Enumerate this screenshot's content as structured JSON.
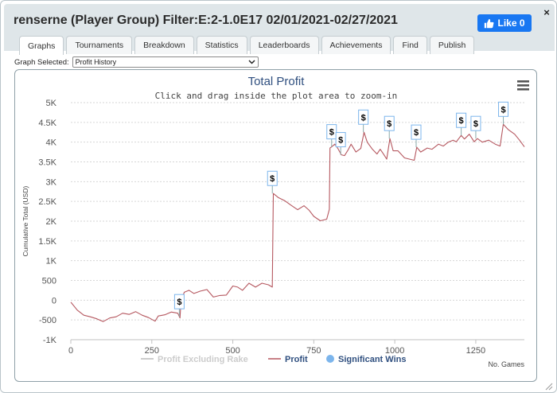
{
  "window": {
    "title": "renserne (Player Group) Filter:E:2-1.0E17 02/01/2021-02/27/2021",
    "like_label": "Like 0",
    "close_label": "×"
  },
  "tabs": [
    {
      "label": "Graphs",
      "active": true
    },
    {
      "label": "Tournaments",
      "active": false
    },
    {
      "label": "Breakdown",
      "active": false
    },
    {
      "label": "Statistics",
      "active": false
    },
    {
      "label": "Leaderboards",
      "active": false
    },
    {
      "label": "Achievements",
      "active": false
    },
    {
      "label": "Find",
      "active": false
    },
    {
      "label": "Publish",
      "active": false
    }
  ],
  "graph_select": {
    "label": "Graph Selected:",
    "value": "Profit History"
  },
  "colors": {
    "profit_line": "#b5575f",
    "excluding_rake": "#cccccc",
    "significant_wins": "#7cb5ec",
    "title": "#2f4f7f",
    "accent": "#1877f2"
  },
  "chart_data": {
    "type": "line",
    "title": "Total Profit",
    "subtitle": "Click and drag inside the plot area to zoom-in",
    "ylabel": "Cumulative Total (USD)",
    "xlabel": "No. Games",
    "xlim": [
      0,
      1400
    ],
    "ylim": [
      -1000,
      5000
    ],
    "x_ticks": [
      0,
      250,
      500,
      750,
      1000,
      1250
    ],
    "x_tick_labels": [
      "0",
      "250",
      "500",
      "750",
      "1000",
      "1250"
    ],
    "y_ticks": [
      -1000,
      -500,
      0,
      500,
      1000,
      1500,
      2000,
      2500,
      3000,
      3500,
      4000,
      4500,
      5000
    ],
    "y_tick_labels": [
      "-1K",
      "-500",
      "0",
      "500",
      "1K",
      "1.5K",
      "2K",
      "2.5K",
      "3K",
      "3.5K",
      "4K",
      "4.5K",
      "5K"
    ],
    "grid": "horizontal dotted",
    "legend_position": "bottom",
    "legend": [
      {
        "name": "Profit Excluding Rake",
        "kind": "line",
        "active": false
      },
      {
        "name": "Profit",
        "kind": "line",
        "active": true
      },
      {
        "name": "Significant Wins",
        "kind": "marker",
        "active": true
      }
    ],
    "series": [
      {
        "name": "Profit",
        "points": [
          [
            0,
            -50
          ],
          [
            20,
            -250
          ],
          [
            40,
            -380
          ],
          [
            60,
            -420
          ],
          [
            80,
            -470
          ],
          [
            100,
            -540
          ],
          [
            120,
            -450
          ],
          [
            140,
            -420
          ],
          [
            160,
            -330
          ],
          [
            180,
            -360
          ],
          [
            200,
            -290
          ],
          [
            220,
            -380
          ],
          [
            240,
            -440
          ],
          [
            260,
            -530
          ],
          [
            270,
            -400
          ],
          [
            290,
            -370
          ],
          [
            310,
            -300
          ],
          [
            330,
            -330
          ],
          [
            337,
            -450
          ],
          [
            340,
            -50
          ],
          [
            350,
            200
          ],
          [
            365,
            250
          ],
          [
            380,
            170
          ],
          [
            400,
            230
          ],
          [
            420,
            270
          ],
          [
            440,
            80
          ],
          [
            460,
            120
          ],
          [
            480,
            130
          ],
          [
            500,
            360
          ],
          [
            515,
            330
          ],
          [
            530,
            250
          ],
          [
            550,
            430
          ],
          [
            570,
            330
          ],
          [
            590,
            430
          ],
          [
            610,
            390
          ],
          [
            622,
            330
          ],
          [
            625,
            2700
          ],
          [
            640,
            2600
          ],
          [
            660,
            2520
          ],
          [
            680,
            2400
          ],
          [
            700,
            2290
          ],
          [
            720,
            2390
          ],
          [
            735,
            2280
          ],
          [
            750,
            2120
          ],
          [
            770,
            2010
          ],
          [
            790,
            2050
          ],
          [
            798,
            2300
          ],
          [
            800,
            3850
          ],
          [
            805,
            3880
          ],
          [
            815,
            3950
          ],
          [
            825,
            3830
          ],
          [
            835,
            3680
          ],
          [
            845,
            3660
          ],
          [
            855,
            3790
          ],
          [
            865,
            3950
          ],
          [
            880,
            3750
          ],
          [
            895,
            3840
          ],
          [
            905,
            4250
          ],
          [
            915,
            4000
          ],
          [
            930,
            3830
          ],
          [
            945,
            3700
          ],
          [
            955,
            3820
          ],
          [
            965,
            3700
          ],
          [
            975,
            3570
          ],
          [
            985,
            4090
          ],
          [
            995,
            3780
          ],
          [
            1010,
            3780
          ],
          [
            1030,
            3600
          ],
          [
            1050,
            3560
          ],
          [
            1060,
            3540
          ],
          [
            1068,
            3870
          ],
          [
            1080,
            3750
          ],
          [
            1100,
            3850
          ],
          [
            1115,
            3820
          ],
          [
            1135,
            3950
          ],
          [
            1150,
            3900
          ],
          [
            1165,
            4000
          ],
          [
            1180,
            4050
          ],
          [
            1190,
            4010
          ],
          [
            1205,
            4170
          ],
          [
            1215,
            4080
          ],
          [
            1230,
            4200
          ],
          [
            1245,
            4010
          ],
          [
            1255,
            4090
          ],
          [
            1270,
            4000
          ],
          [
            1290,
            4050
          ],
          [
            1310,
            3950
          ],
          [
            1325,
            3900
          ],
          [
            1335,
            4450
          ],
          [
            1350,
            4320
          ],
          [
            1370,
            4200
          ],
          [
            1385,
            4050
          ],
          [
            1400,
            3880
          ]
        ]
      }
    ],
    "significant_wins": [
      {
        "x": 335,
        "y": -420,
        "label": "$"
      },
      {
        "x": 622,
        "y": 2700,
        "label": "$"
      },
      {
        "x": 805,
        "y": 3880,
        "label": "$"
      },
      {
        "x": 833,
        "y": 3680,
        "label": "$"
      },
      {
        "x": 903,
        "y": 4250,
        "label": "$"
      },
      {
        "x": 983,
        "y": 4090,
        "label": "$"
      },
      {
        "x": 1066,
        "y": 3870,
        "label": "$"
      },
      {
        "x": 1205,
        "y": 4170,
        "label": "$"
      },
      {
        "x": 1250,
        "y": 4090,
        "label": "$"
      },
      {
        "x": 1335,
        "y": 4450,
        "label": "$"
      }
    ]
  }
}
